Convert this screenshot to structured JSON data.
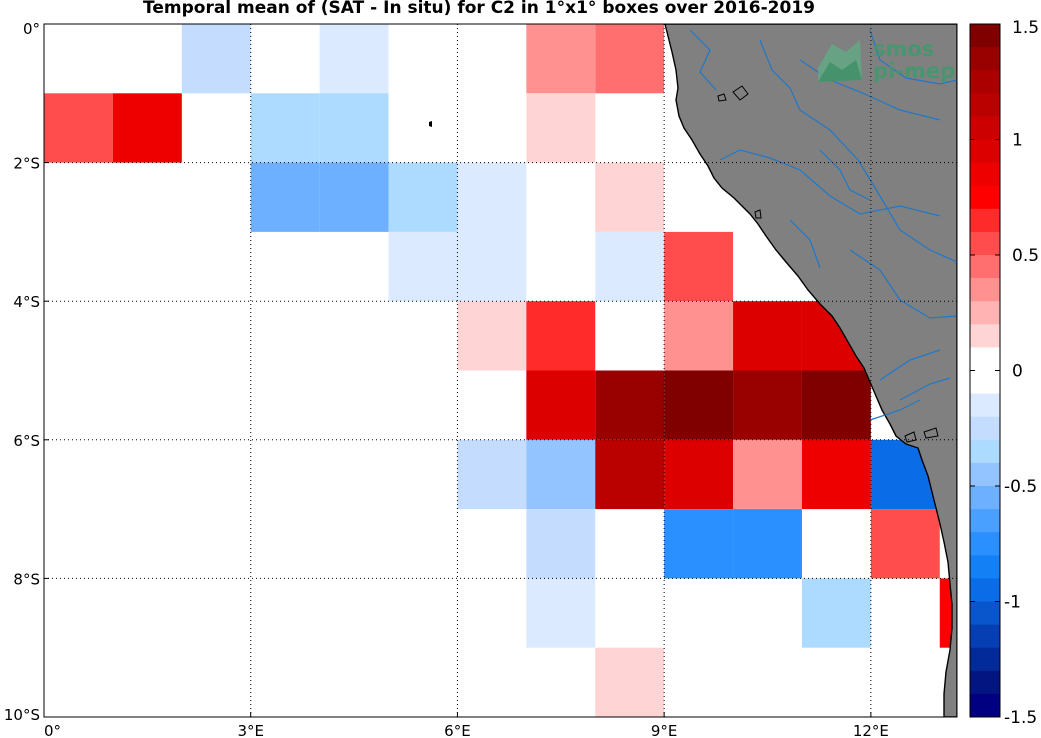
{
  "title": "Temporal mean of (SAT - In situ) for C2 in 1°x1° boxes over 2016-2019",
  "logo": {
    "line1": "smos",
    "line2": "pi-mep",
    "color": "#3e9a6e"
  },
  "colors": {
    "land": "#808080",
    "rivers": "#1f78c8",
    "coast": "#000000",
    "ocean": "#ffffff"
  },
  "chart_data": {
    "type": "heatmap",
    "title": "Temporal mean of (SAT - In situ) for C2 in 1°x1° boxes over 2016-2019",
    "xlim": [
      0,
      13.25
    ],
    "ylim": [
      -10,
      0
    ],
    "x_ticks": [
      {
        "value": 0,
        "label": "0°"
      },
      {
        "value": 3,
        "label": "3°E"
      },
      {
        "value": 6,
        "label": "6°E"
      },
      {
        "value": 9,
        "label": "9°E"
      },
      {
        "value": 12,
        "label": "12°E"
      }
    ],
    "y_ticks": [
      {
        "value": 0,
        "label": "0°"
      },
      {
        "value": -2,
        "label": "2°S"
      },
      {
        "value": -4,
        "label": "4°S"
      },
      {
        "value": -6,
        "label": "6°S"
      },
      {
        "value": -8,
        "label": "8°S"
      },
      {
        "value": -10,
        "label": "10°S"
      }
    ],
    "grid": true,
    "grid_style": "dotted",
    "colorbar": {
      "min": -1.5,
      "max": 1.5,
      "levels": 30,
      "ticks": [
        1.5,
        1,
        0.5,
        0,
        -0.5,
        -1,
        -1.5
      ],
      "tick_labels": [
        "1.5",
        "1",
        "0.5",
        "0",
        "-0.5",
        "-1",
        "-1.5"
      ],
      "colors": [
        "#800000",
        "#990000",
        "#aa0000",
        "#bb0000",
        "#cc0000",
        "#dd0000",
        "#ee0000",
        "#ff0000",
        "#ff2a2a",
        "#ff4d4d",
        "#ff6f6f",
        "#ff9191",
        "#ffb3b3",
        "#ffd4d4",
        "#ffffff",
        "#ffffff",
        "#dbeaff",
        "#c4ddff",
        "#addaff",
        "#94c4ff",
        "#6cb0ff",
        "#4aa0ff",
        "#2a8fff",
        "#1480f5",
        "#0a6ce6",
        "#0855cc",
        "#063fb3",
        "#032a99",
        "#021580",
        "#000080"
      ]
    },
    "cells": [
      {
        "lon": 2,
        "lat": 0,
        "value": -0.2
      },
      {
        "lon": 4,
        "lat": 0,
        "value": -0.1
      },
      {
        "lon": 7,
        "lat": 0,
        "value": 0.3
      },
      {
        "lon": 8,
        "lat": 0,
        "value": 0.45
      },
      {
        "lon": 0,
        "lat": -1,
        "value": 0.55
      },
      {
        "lon": 1,
        "lat": -1,
        "value": 0.85
      },
      {
        "lon": 3,
        "lat": -1,
        "value": -0.3
      },
      {
        "lon": 4,
        "lat": -1,
        "value": -0.3
      },
      {
        "lon": 7,
        "lat": -1,
        "value": 0.15
      },
      {
        "lon": 3,
        "lat": -2,
        "value": -0.55
      },
      {
        "lon": 4,
        "lat": -2,
        "value": -0.55
      },
      {
        "lon": 5,
        "lat": -2,
        "value": -0.3
      },
      {
        "lon": 6,
        "lat": -2,
        "value": -0.1
      },
      {
        "lon": 8,
        "lat": -2,
        "value": 0.15
      },
      {
        "lon": 5,
        "lat": -3,
        "value": -0.1
      },
      {
        "lon": 6,
        "lat": -3,
        "value": -0.1
      },
      {
        "lon": 8,
        "lat": -3,
        "value": -0.1
      },
      {
        "lon": 9,
        "lat": -3,
        "value": 0.55
      },
      {
        "lon": 6,
        "lat": -4,
        "value": 0.15
      },
      {
        "lon": 7,
        "lat": -4,
        "value": 0.65
      },
      {
        "lon": 9,
        "lat": -4,
        "value": 0.3
      },
      {
        "lon": 10,
        "lat": -4,
        "value": 0.9
      },
      {
        "lon": 11,
        "lat": -4,
        "value": 1.0
      },
      {
        "lon": 7,
        "lat": -5,
        "value": 0.95
      },
      {
        "lon": 8,
        "lat": -5,
        "value": 1.35
      },
      {
        "lon": 9,
        "lat": -5,
        "value": 1.45
      },
      {
        "lon": 10,
        "lat": -5,
        "value": 1.35
      },
      {
        "lon": 11,
        "lat": -5,
        "value": 1.45
      },
      {
        "lon": 6,
        "lat": -6,
        "value": -0.2
      },
      {
        "lon": 7,
        "lat": -6,
        "value": -0.45
      },
      {
        "lon": 8,
        "lat": -6,
        "value": 1.2
      },
      {
        "lon": 9,
        "lat": -6,
        "value": 0.95
      },
      {
        "lon": 10,
        "lat": -6,
        "value": 0.3
      },
      {
        "lon": 11,
        "lat": -6,
        "value": 0.85
      },
      {
        "lon": 12,
        "lat": -6,
        "value": -0.95
      },
      {
        "lon": 7,
        "lat": -7,
        "value": -0.2
      },
      {
        "lon": 9,
        "lat": -7,
        "value": -0.7
      },
      {
        "lon": 10,
        "lat": -7,
        "value": -0.7
      },
      {
        "lon": 12,
        "lat": -7,
        "value": 0.55
      },
      {
        "lon": 7,
        "lat": -8,
        "value": -0.1
      },
      {
        "lon": 11,
        "lat": -8,
        "value": -0.35
      },
      {
        "lon": 13,
        "lat": -8,
        "value": 0.75
      },
      {
        "lon": 8,
        "lat": -9,
        "value": 0.15
      }
    ]
  }
}
